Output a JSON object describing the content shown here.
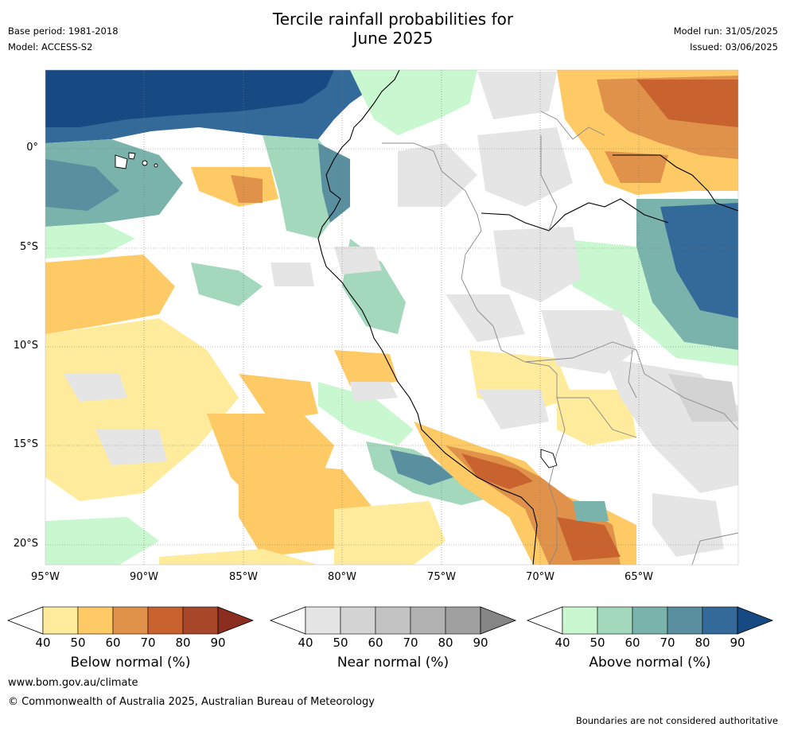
{
  "title_line1": "Tercile rainfall probabilities for",
  "title_line2": "June 2025",
  "meta": {
    "base_period": "Base period: 1981-2018",
    "model": "Model: ACCESS-S2",
    "model_run": "Model run: 31/05/2025",
    "issued": "Issued: 03/06/2025"
  },
  "map": {
    "lat_labels": [
      "0°",
      "5°S",
      "10°S",
      "15°S",
      "20°S"
    ],
    "lon_labels": [
      "95°W",
      "90°W",
      "85°W",
      "80°W",
      "75°W",
      "70°W",
      "65°W"
    ]
  },
  "colorbars": [
    {
      "title": "Below normal (%)",
      "ticks": [
        "40",
        "50",
        "60",
        "70",
        "80",
        "90"
      ],
      "colors": [
        "#ffeb9c",
        "#fdca66",
        "#e0914a",
        "#c8632f",
        "#a9472a",
        "#8a2d1f"
      ]
    },
    {
      "title": "Near normal (%)",
      "ticks": [
        "40",
        "50",
        "60",
        "70",
        "80",
        "90"
      ],
      "colors": [
        "#e5e5e5",
        "#d3d3d3",
        "#c3c3c3",
        "#b1b1b1",
        "#a0a0a0",
        "#858585"
      ]
    },
    {
      "title": "Above normal (%)",
      "ticks": [
        "40",
        "50",
        "60",
        "70",
        "80",
        "90"
      ],
      "colors": [
        "#c9f7d0",
        "#a3d8bd",
        "#7ab3ab",
        "#5a8fa0",
        "#346a9a",
        "#174a82"
      ]
    }
  ],
  "footer": {
    "website": "www.bom.gov.au/climate",
    "copyright": "© Commonwealth of Australia 2025, Australian Bureau of Meteorology",
    "disclaimer": "Boundaries are not considered authoritative"
  }
}
